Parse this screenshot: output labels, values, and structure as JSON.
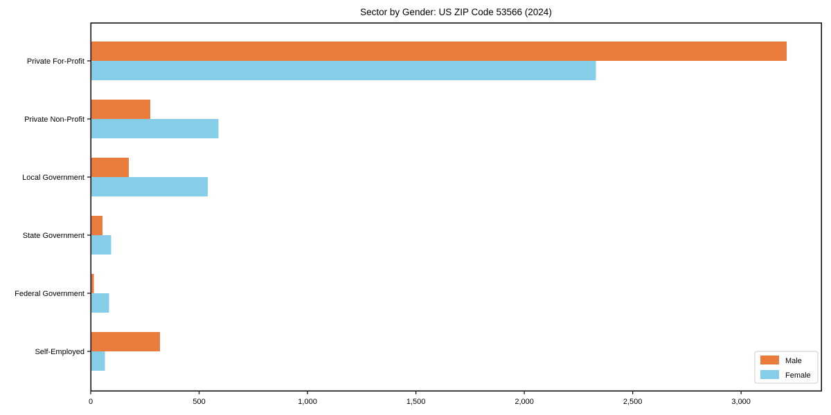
{
  "chart_data": {
    "type": "bar",
    "orientation": "horizontal",
    "title": "Sector by Gender: US ZIP Code 53566 (2024)",
    "categories": [
      "Private For-Profit",
      "Private Non-Profit",
      "Local Government",
      "State Government",
      "Federal Government",
      "Self-Employed"
    ],
    "series": [
      {
        "name": "Male",
        "color": "#e97c3d",
        "values": [
          3210,
          275,
          175,
          55,
          15,
          320
        ]
      },
      {
        "name": "Female",
        "color": "#86cde8",
        "values": [
          2330,
          590,
          540,
          95,
          85,
          65
        ]
      }
    ],
    "xlabel": "",
    "ylabel": "",
    "xlim": [
      0,
      3370
    ],
    "x_tick_values": [
      0,
      500,
      1000,
      1500,
      2000,
      2500,
      3000
    ],
    "x_tick_labels": [
      "0",
      "500",
      "1,000",
      "1,500",
      "2,000",
      "2,500",
      "3,000"
    ],
    "grid": false,
    "legend": {
      "position": "lower right",
      "entries": [
        {
          "label": "Male",
          "color": "#e97c3d"
        },
        {
          "label": "Female",
          "color": "#86cde8"
        }
      ]
    }
  },
  "colors": {
    "background": "#ffffff",
    "axis": "#000000",
    "text": "#000000",
    "legend_border": "#cccccc",
    "legend_background": "#ffffff"
  }
}
